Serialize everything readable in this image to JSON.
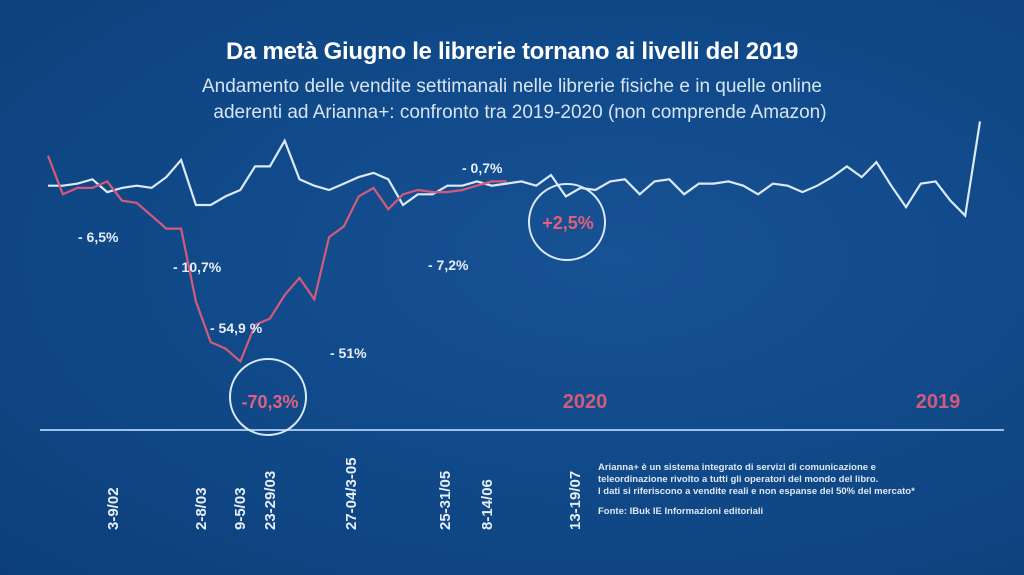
{
  "chart_data": {
    "type": "line",
    "title": "Da metà Giugno le librerie tornano ai livelli del 2019",
    "subtitle": [
      "Andamento delle vendite settimanali nelle librerie fisiche e in quelle online",
      "aderenti ad Arianna+: confronto tra 2019-2020 (non comprende Amazon)"
    ],
    "xlabel": "",
    "ylabel": "",
    "y_units": "relative weekly sales index (estimated, no axis shown)",
    "ylim": [
      0,
      140
    ],
    "grid": false,
    "x_tick_labels": [
      {
        "index": 3,
        "label": "3-9/02"
      },
      {
        "index": 7,
        "label": "2-8/03"
      },
      {
        "index": 8,
        "label": "9-5/03"
      },
      {
        "index": 9,
        "label": "23-29/03"
      },
      {
        "index": 14,
        "label": "27-04/3-05"
      },
      {
        "index": 18,
        "label": "25-31/05"
      },
      {
        "index": 20,
        "label": "8-14/06"
      },
      {
        "index": 24,
        "label": "13-19/07"
      }
    ],
    "series": [
      {
        "name": "2019",
        "color": "#dbe9f8",
        "values": [
          100,
          100,
          101,
          103,
          97,
          99,
          100,
          99,
          104,
          112,
          91,
          91,
          95,
          98,
          109,
          109,
          121,
          103,
          100,
          98,
          101,
          104,
          106,
          103,
          91,
          96,
          96,
          100,
          100,
          102,
          100,
          101,
          102,
          100,
          105,
          95,
          99,
          98,
          102,
          103,
          96,
          102,
          103,
          96,
          101,
          101,
          102,
          100,
          96,
          101,
          100,
          97,
          100,
          104,
          109,
          104,
          111,
          100,
          90,
          101,
          102,
          93,
          86,
          130
        ]
      },
      {
        "name": "2020",
        "color": "#d35a7b",
        "values": [
          114,
          96,
          99,
          99,
          102,
          93,
          92,
          86,
          80,
          80,
          46,
          27,
          24,
          18,
          35,
          38,
          49,
          57,
          47,
          76,
          81,
          95,
          99,
          89,
          96,
          98,
          97,
          97,
          98,
          100,
          102,
          102
        ]
      }
    ],
    "annotations": [
      {
        "text": "- 6,5%",
        "series": "2020",
        "color": "#e6eef8"
      },
      {
        "text": "- 10,7%",
        "series": "2020",
        "color": "#e6eef8"
      },
      {
        "text": "- 54,9 %",
        "series": "2020",
        "color": "#e6eef8"
      },
      {
        "text": "-70,3%",
        "series": "2020",
        "color": "#e0607f",
        "circled": true
      },
      {
        "text": "- 51%",
        "series": "2020",
        "color": "#e6eef8"
      },
      {
        "text": "- 7,2%",
        "series": "2020",
        "color": "#e6eef8"
      },
      {
        "text": "- 0,7%",
        "series": "2020",
        "color": "#e6eef8"
      },
      {
        "text": "+2,5%",
        "series": "2020",
        "color": "#e0607f",
        "circled": true
      }
    ],
    "legend": [
      {
        "label": "2020",
        "color": "#d35a7b",
        "placement": "bottom-center"
      },
      {
        "label": "2019",
        "color": "#d35a7b",
        "placement": "bottom-right"
      }
    ]
  },
  "footnote": {
    "lines": [
      "Arianna+ è un sistema integrato di servizi di comunicazione e",
      "teleordinazione rivolto a tutti gli operatori del mondo del libro.",
      "I dati si riferiscono a vendite reali e non espanse del 50% del mercato*"
    ],
    "source": "Fonte: IBuk IE Informazioni editoriali"
  }
}
